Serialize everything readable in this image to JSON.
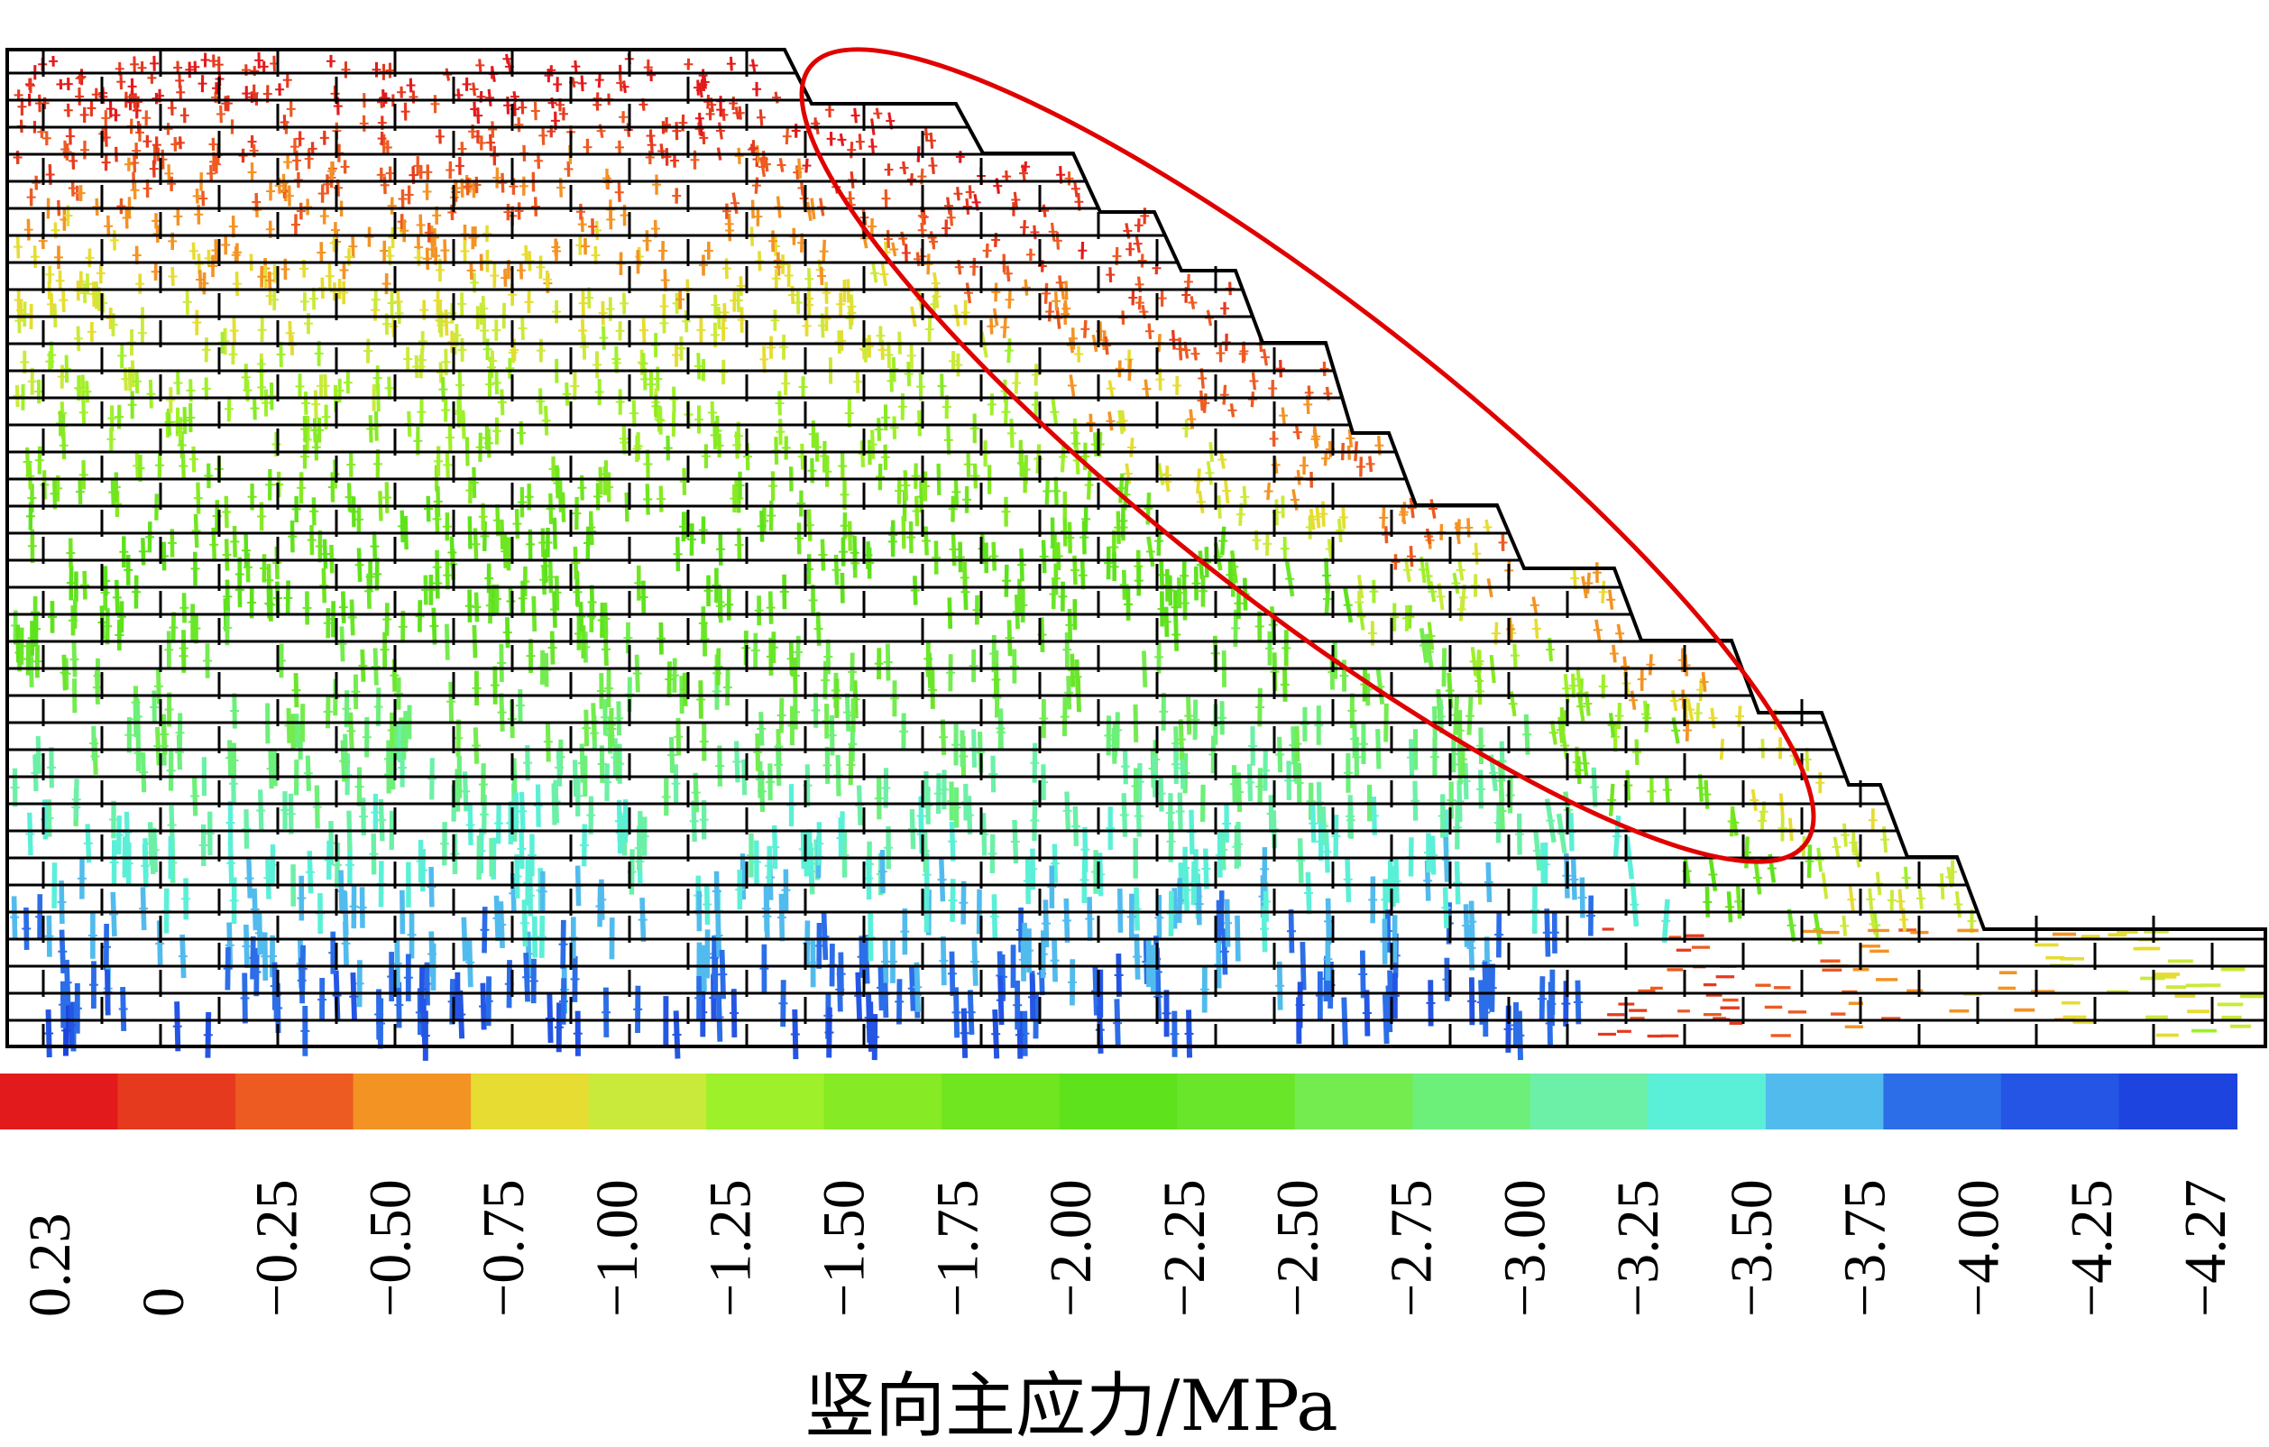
{
  "colorbar": {
    "unit_label": "竖向主应力/MPa",
    "ticks": [
      "0.23",
      "0",
      "−0.25",
      "−0.50",
      "−0.75",
      "−1.00",
      "−1.25",
      "−1.50",
      "−1.75",
      "−2.00",
      "−2.25",
      "−2.50",
      "−2.75",
      "−3.00",
      "−3.25",
      "−3.50",
      "−3.75",
      "−4.00",
      "−4.25",
      "−4.27"
    ],
    "colors": [
      "#e31a1c",
      "#e53a1e",
      "#ed5a22",
      "#f39324",
      "#e6dc32",
      "#c9ea3a",
      "#9ef02a",
      "#86ea24",
      "#6fe620",
      "#5ee21c",
      "#6ae62a",
      "#74ec50",
      "#6cf07a",
      "#6cf0a8",
      "#5af0d8",
      "#52bbee",
      "#2c6ee8",
      "#2455e4",
      "#1e44e0"
    ]
  },
  "annotation": {
    "type": "ellipse",
    "color": "#e00000"
  }
}
